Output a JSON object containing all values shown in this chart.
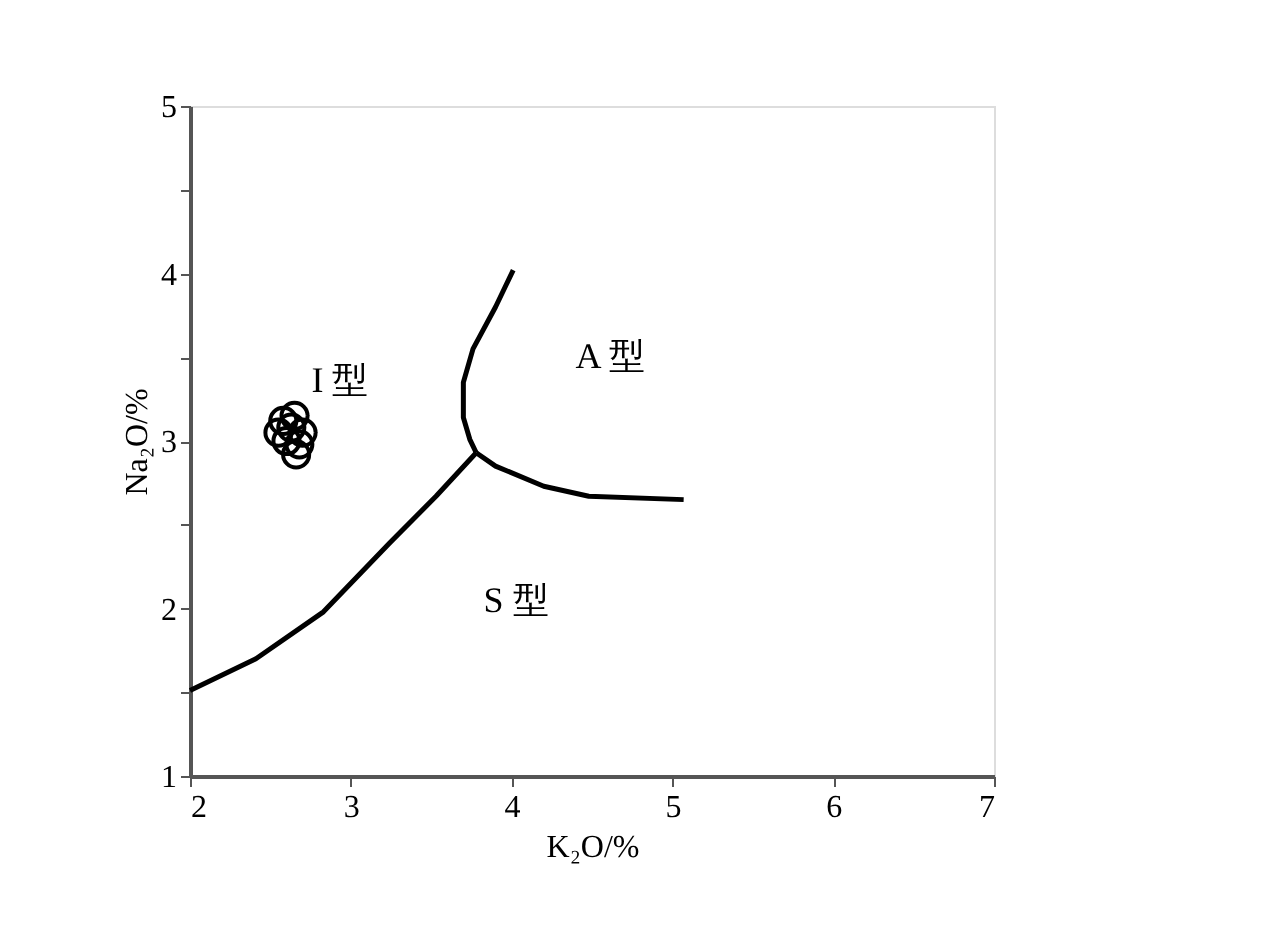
{
  "chart_data": {
    "type": "scatter",
    "xlabel": "K₂O/%",
    "ylabel": "Na₂O/%",
    "xlim": [
      2,
      7
    ],
    "ylim": [
      1,
      5
    ],
    "xticks": [
      2,
      3,
      4,
      5,
      6,
      7
    ],
    "yticks": [
      1,
      {
        "value": 1.5,
        "label": null
      },
      2,
      {
        "value": 2.5,
        "label": null
      },
      3,
      {
        "value": 3.5,
        "label": null
      },
      4,
      {
        "value": 4.5,
        "label": null
      },
      5
    ],
    "grid": false,
    "series": [
      {
        "marker": "circle",
        "color": "#000000",
        "x": [
          2.58,
          2.65,
          2.7,
          2.6,
          2.55,
          2.68,
          2.63,
          2.66
        ],
        "values": [
          3.12,
          3.15,
          3.05,
          3.0,
          3.05,
          2.98,
          3.08,
          2.92
        ]
      },
      {
        "type": "line",
        "color": "#000000",
        "marker": "none",
        "x": [
          2.0,
          2.41,
          2.83,
          3.24,
          3.53,
          3.78
        ],
        "values": [
          1.51,
          1.7,
          1.98,
          2.39,
          2.67,
          2.93
        ]
      },
      {
        "type": "line",
        "color": "#000000",
        "marker": "none",
        "x": [
          4.01,
          3.9,
          3.76,
          3.7,
          3.7,
          3.74,
          3.78
        ],
        "values": [
          4.02,
          3.8,
          3.55,
          3.35,
          3.14,
          3.01,
          2.93
        ]
      },
      {
        "type": "line",
        "color": "#000000",
        "marker": "none",
        "x": [
          3.78,
          3.9,
          4.2,
          4.48,
          5.07
        ],
        "values": [
          2.93,
          2.85,
          2.73,
          2.67,
          2.65
        ]
      }
    ],
    "annotations": [
      "I 型",
      "A 型",
      "S 型"
    ]
  }
}
